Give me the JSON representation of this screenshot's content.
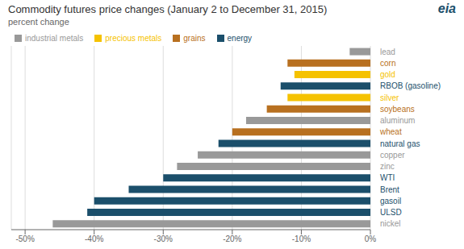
{
  "chart_data": {
    "type": "bar",
    "orientation": "horizontal",
    "title": "Commodity futures price changes (January 2 to December 31, 2015)",
    "subtitle": "percent change",
    "annotations": [
      "eia"
    ],
    "categories": [
      "lead",
      "corn",
      "gold",
      "RBOB (gasoline)",
      "silver",
      "soybeans",
      "aluminum",
      "wheat",
      "natural gas",
      "copper",
      "zinc",
      "WTI",
      "Brent",
      "gasoil",
      "ULSD",
      "nickel"
    ],
    "series": [
      {
        "name": "industrial metals",
        "color": "#999999",
        "values": [
          -3,
          null,
          null,
          null,
          null,
          null,
          -18,
          null,
          null,
          -25,
          -28,
          null,
          null,
          null,
          null,
          -46
        ]
      },
      {
        "name": "precious metals",
        "color": "#f5c200",
        "values": [
          null,
          null,
          -11,
          null,
          -12,
          null,
          null,
          null,
          null,
          null,
          null,
          null,
          null,
          null,
          null,
          null
        ]
      },
      {
        "name": "grains",
        "color": "#b87020",
        "values": [
          null,
          -12,
          null,
          null,
          null,
          -15,
          null,
          -20,
          null,
          null,
          null,
          null,
          null,
          null,
          null,
          null
        ]
      },
      {
        "name": "energy",
        "color": "#1b4f6b",
        "values": [
          null,
          null,
          null,
          -13,
          null,
          null,
          null,
          null,
          -22,
          null,
          null,
          -30,
          -35,
          -40,
          -41,
          null
        ]
      }
    ],
    "xlim": [
      -52,
      0
    ],
    "xticks": [
      {
        "value": -50,
        "label": "-50%"
      },
      {
        "value": -40,
        "label": "-40%"
      },
      {
        "value": -30,
        "label": "-30%"
      },
      {
        "value": -20,
        "label": "-20%"
      },
      {
        "value": -10,
        "label": "-10%"
      },
      {
        "value": 0,
        "label": "0%"
      }
    ],
    "grid": true
  }
}
